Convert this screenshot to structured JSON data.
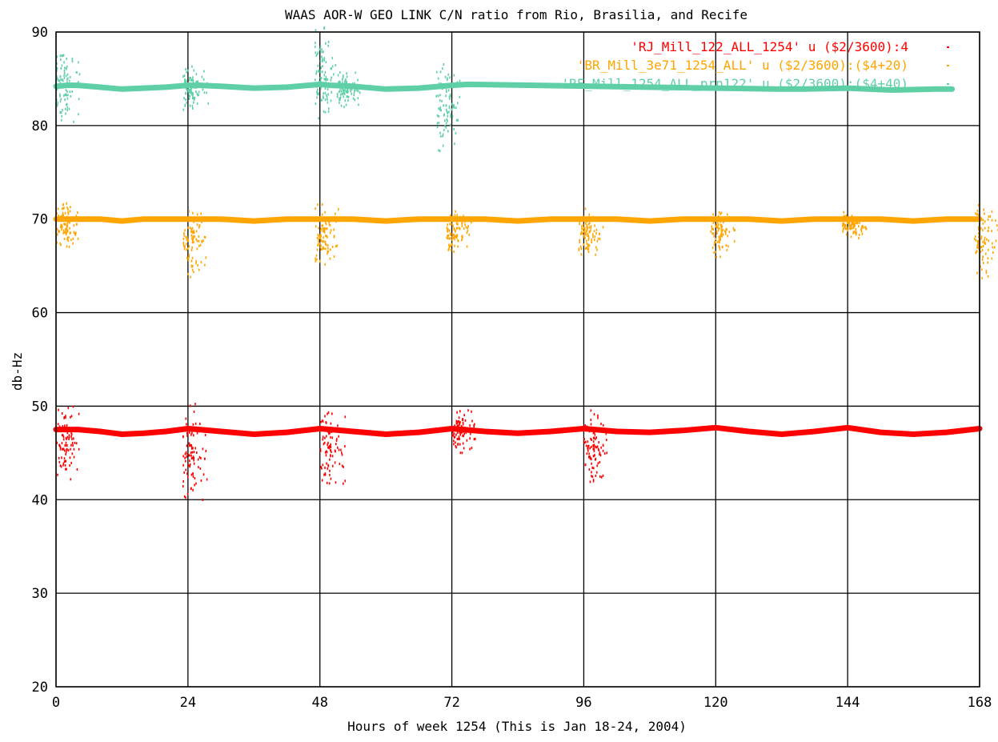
{
  "chart_data": {
    "type": "scatter",
    "title": "WAAS AOR-W GEO LINK C/N ratio from Rio, Brasilia, and Recife",
    "xlabel": "Hours of week 1254 (This is Jan 18-24, 2004)",
    "ylabel": "db-Hz",
    "xlim": [
      0,
      168
    ],
    "ylim": [
      20,
      90
    ],
    "xticks": [
      0,
      24,
      48,
      72,
      96,
      120,
      144,
      168
    ],
    "yticks": [
      20,
      30,
      40,
      50,
      60,
      70,
      80,
      90
    ],
    "grid": true,
    "legend_position": "top-right",
    "series": [
      {
        "name": "'RJ_Mill_122_ALL_1254' u ($2/3600):4",
        "color": "#ff0000",
        "x": [
          0,
          2,
          4,
          8,
          12,
          16,
          20,
          24,
          26,
          30,
          36,
          42,
          48,
          50,
          54,
          60,
          66,
          72,
          74,
          78,
          84,
          90,
          96,
          98,
          102,
          108,
          114,
          120,
          126,
          132,
          138,
          144,
          150,
          156,
          162,
          168
        ],
        "y": [
          47.5,
          47.5,
          47.5,
          47.3,
          47.0,
          47.1,
          47.3,
          47.6,
          47.5,
          47.3,
          47.0,
          47.2,
          47.6,
          47.5,
          47.3,
          47.0,
          47.2,
          47.6,
          47.5,
          47.3,
          47.1,
          47.3,
          47.6,
          47.5,
          47.3,
          47.2,
          47.4,
          47.7,
          47.3,
          47.0,
          47.3,
          47.7,
          47.2,
          47.0,
          47.2,
          47.6
        ],
        "bursts": [
          {
            "x": 1,
            "min": 41,
            "max": 51
          },
          {
            "x": 24,
            "min": 39.5,
            "max": 51
          },
          {
            "x": 49,
            "min": 41,
            "max": 50.5
          },
          {
            "x": 73,
            "min": 45,
            "max": 50
          },
          {
            "x": 97,
            "min": 41,
            "max": 50
          }
        ]
      },
      {
        "name": "'BR_Mill_3e71_1254_ALL' u ($2/3600):($4+20)",
        "color": "#ffa500",
        "x": [
          0,
          2,
          4,
          8,
          12,
          16,
          20,
          24,
          26,
          30,
          36,
          42,
          48,
          50,
          54,
          60,
          66,
          72,
          74,
          78,
          84,
          90,
          96,
          98,
          102,
          108,
          114,
          120,
          126,
          132,
          138,
          144,
          150,
          156,
          162,
          168
        ],
        "y": [
          70.0,
          70.0,
          70.0,
          70.0,
          69.8,
          70.0,
          70.0,
          70.0,
          70.0,
          70.0,
          69.8,
          70.0,
          70.0,
          70.0,
          70.0,
          69.8,
          70.0,
          70.0,
          70.0,
          70.0,
          69.8,
          70.0,
          70.0,
          70.0,
          70.0,
          69.8,
          70.0,
          70.0,
          70.0,
          69.8,
          70.0,
          70.0,
          70.0,
          69.8,
          70.0,
          70.0
        ],
        "bursts": [
          {
            "x": 1,
            "min": 66.5,
            "max": 72
          },
          {
            "x": 24,
            "min": 63.5,
            "max": 72
          },
          {
            "x": 48,
            "min": 64.5,
            "max": 72
          },
          {
            "x": 72,
            "min": 66,
            "max": 71.5
          },
          {
            "x": 96,
            "min": 66,
            "max": 71.5
          },
          {
            "x": 120,
            "min": 66,
            "max": 71.5
          },
          {
            "x": 144,
            "min": 68,
            "max": 71
          },
          {
            "x": 168,
            "min": 63.5,
            "max": 72
          }
        ]
      },
      {
        "name": "'RF_Mill_1254_ALL_prn122' u ($2/3600):($4+40)",
        "color": "#5fcfa5",
        "x": [
          0,
          2,
          4,
          8,
          12,
          16,
          20,
          24,
          26,
          30,
          36,
          42,
          48,
          50,
          54,
          60,
          66,
          72,
          75,
          131,
          136,
          144,
          152,
          160,
          163
        ],
        "y": [
          84.2,
          84.3,
          84.3,
          84.1,
          83.9,
          84.0,
          84.1,
          84.3,
          84.3,
          84.2,
          84.0,
          84.1,
          84.4,
          84.3,
          84.2,
          83.9,
          84.0,
          84.3,
          84.4,
          83.9,
          83.9,
          84.0,
          83.8,
          83.9,
          83.9
        ],
        "bursts": [
          {
            "x": 1,
            "min": 80,
            "max": 89
          },
          {
            "x": 24,
            "min": 81.5,
            "max": 87
          },
          {
            "x": 48,
            "min": 80,
            "max": 91
          },
          {
            "x": 70,
            "min": 77,
            "max": 87
          },
          {
            "x": 52,
            "min": 82,
            "max": 86
          }
        ]
      }
    ]
  }
}
